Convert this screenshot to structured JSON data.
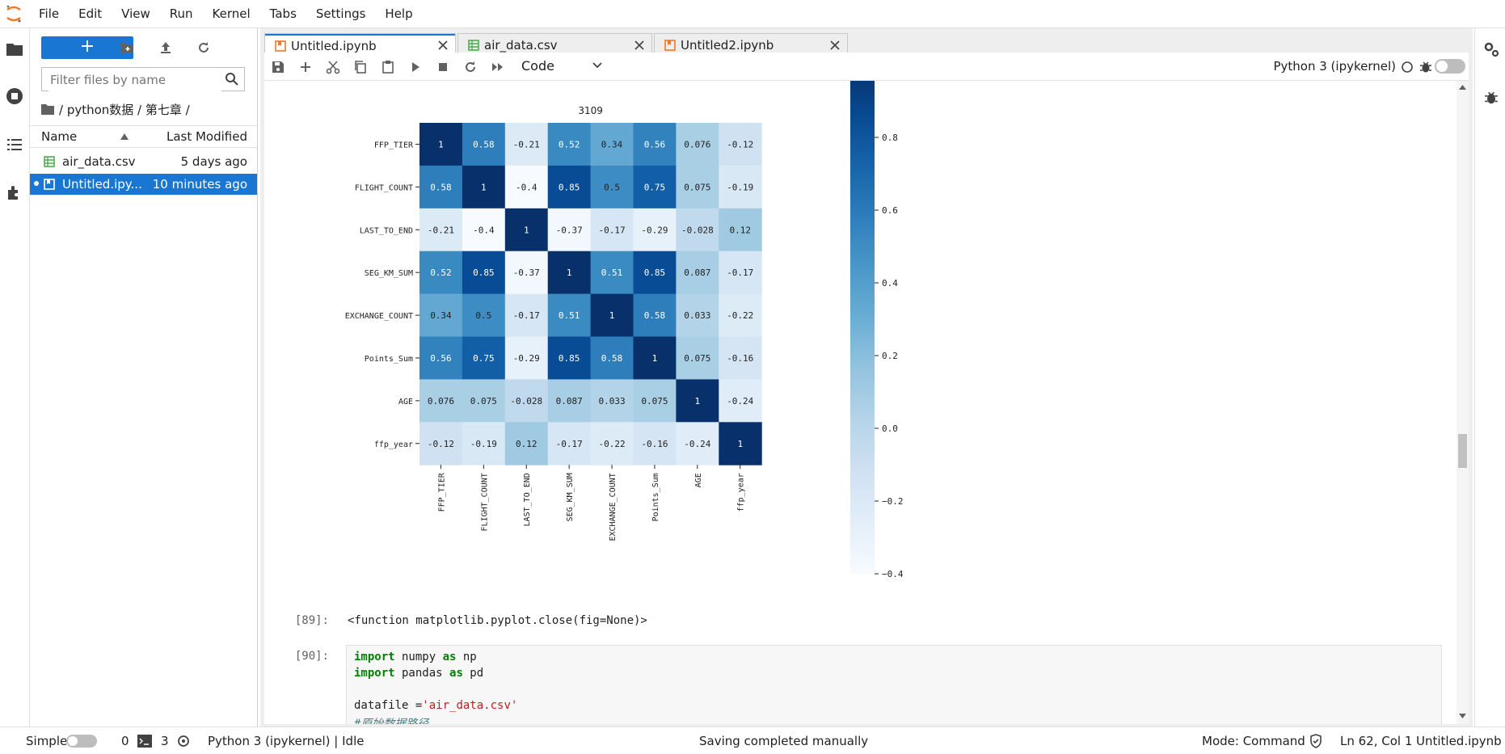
{
  "menu": [
    "File",
    "Edit",
    "View",
    "Run",
    "Kernel",
    "Tabs",
    "Settings",
    "Help"
  ],
  "filebrowser": {
    "new_label": "+",
    "filter_placeholder": "Filter files by name",
    "breadcrumb": "/ python数据 / 第七章 /",
    "col_name": "Name",
    "col_modified": "Last Modified",
    "files": [
      {
        "name": "air_data.csv",
        "modified": "5 days ago",
        "type": "csv",
        "selected": false
      },
      {
        "name": "Untitled.ipy...",
        "modified": "10 minutes ago",
        "type": "notebook",
        "selected": true
      }
    ]
  },
  "tabs": [
    {
      "label": "Untitled.ipynb",
      "type": "notebook",
      "active": true
    },
    {
      "label": "air_data.csv",
      "type": "csv",
      "active": false
    },
    {
      "label": "Untitled2.ipynb",
      "type": "notebook",
      "active": false
    }
  ],
  "toolbar": {
    "cell_type": "Code",
    "kernel": "Python 3 (ipykernel)"
  },
  "chart_data": {
    "type": "heatmap",
    "title": "3109",
    "rows": [
      "FFP_TIER",
      "FLIGHT_COUNT",
      "LAST_TO_END",
      "SEG_KM_SUM",
      "EXCHANGE_COUNT",
      "Points_Sum",
      "AGE",
      "ffp_year"
    ],
    "cols": [
      "FFP_TIER",
      "FLIGHT_COUNT",
      "LAST_TO_END",
      "SEG_KM_SUM",
      "EXCHANGE_COUNT",
      "Points_Sum",
      "AGE",
      "ffp_year"
    ],
    "values": [
      [
        1,
        0.58,
        -0.21,
        0.52,
        0.34,
        0.56,
        0.076,
        -0.12
      ],
      [
        0.58,
        1,
        -0.4,
        0.85,
        0.5,
        0.75,
        0.075,
        -0.19
      ],
      [
        -0.21,
        -0.4,
        1,
        -0.37,
        -0.17,
        -0.29,
        -0.028,
        0.12
      ],
      [
        0.52,
        0.85,
        -0.37,
        1,
        0.51,
        0.85,
        0.087,
        -0.17
      ],
      [
        0.34,
        0.5,
        -0.17,
        0.51,
        1,
        0.58,
        0.033,
        -0.22
      ],
      [
        0.56,
        0.75,
        -0.29,
        0.85,
        0.58,
        1,
        0.075,
        -0.16
      ],
      [
        0.076,
        0.075,
        -0.028,
        0.087,
        0.033,
        0.075,
        1,
        -0.24
      ],
      [
        -0.12,
        -0.19,
        0.12,
        -0.17,
        -0.22,
        -0.16,
        -0.24,
        1
      ]
    ],
    "colorbar": {
      "ticks": [
        0.8,
        0.6,
        0.4,
        0.2,
        0.0,
        -0.2,
        -0.4
      ],
      "tick_labels": [
        "0.8",
        "0.6",
        "0.4",
        "0.2",
        "0.0",
        "−0.2",
        "−0.4"
      ],
      "range": [
        -0.4,
        1.0
      ],
      "colormap": "Blues"
    }
  },
  "cells": {
    "out89_prompt": "[89]:",
    "out89_text": "<function matplotlib.pyplot.close(fig=None)>",
    "in90_prompt": "[90]:",
    "code": [
      [
        {
          "t": "import",
          "c": "kw"
        },
        {
          "t": " numpy ",
          "c": ""
        },
        {
          "t": "as",
          "c": "kw"
        },
        {
          "t": " np",
          "c": ""
        }
      ],
      [
        {
          "t": "import",
          "c": "kw"
        },
        {
          "t": " pandas ",
          "c": ""
        },
        {
          "t": "as",
          "c": "kw"
        },
        {
          "t": " pd",
          "c": ""
        }
      ],
      [],
      [
        {
          "t": "datafile =",
          "c": ""
        },
        {
          "t": "'air_data.csv'",
          "c": "str"
        }
      ],
      [
        {
          "t": "#原始数据路径",
          "c": "cmt"
        }
      ]
    ]
  },
  "statusbar": {
    "mode_label": "Simple",
    "terminals": "0",
    "kernels": "3",
    "kernel_status": "Python 3 (ipykernel) | Idle",
    "message": "Saving completed manually",
    "mode": "Mode: Command",
    "position": "Ln 62, Col 1",
    "filename": "Untitled.ipynb"
  }
}
